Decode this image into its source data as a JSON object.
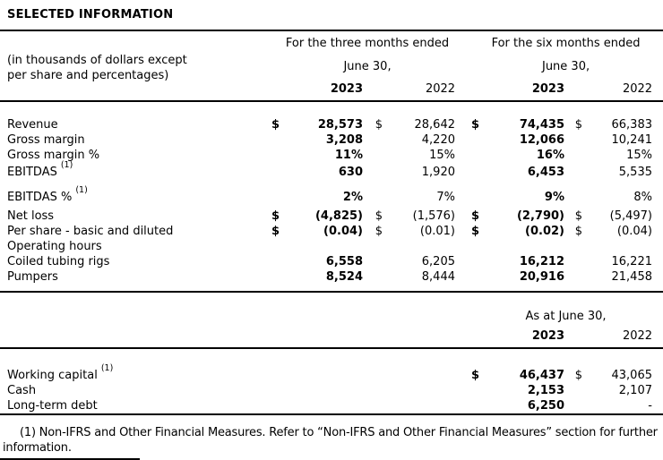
{
  "title": "SELECTED INFORMATION",
  "units_note": [
    "(in thousands of dollars except",
    "per share and percentages)"
  ],
  "periods_table": {
    "group1_header": "For the three months ended",
    "group2_header": "For the six months ended",
    "date_line": "June 30,",
    "years": [
      "2023",
      "2022",
      "2023",
      "2022"
    ],
    "rows": [
      {
        "label": "Revenue",
        "indent": false,
        "sup": "",
        "cells": [
          "$",
          "28,573",
          "$",
          "28,642",
          "$",
          "74,435",
          "$",
          "66,383"
        ]
      },
      {
        "label": "Gross margin",
        "indent": false,
        "sup": "",
        "cells": [
          "",
          "3,208",
          "",
          "4,220",
          "",
          "12,066",
          "",
          "10,241"
        ]
      },
      {
        "label": "Gross margin %",
        "indent": true,
        "sup": "",
        "cells": [
          "",
          "11%",
          "",
          "15%",
          "",
          "16%",
          "",
          "15%"
        ]
      },
      {
        "label": "EBITDAS",
        "indent": false,
        "sup": "(1)",
        "cells": [
          "",
          "630",
          "",
          "1,920",
          "",
          "6,453",
          "",
          "5,535"
        ]
      },
      {
        "label": "EBITDAS %",
        "indent": true,
        "sup": "(1)",
        "cells": [
          "",
          "2%",
          "",
          "7%",
          "",
          "9%",
          "",
          "8%"
        ]
      },
      {
        "label": "Net loss",
        "indent": false,
        "sup": "",
        "cells": [
          "$",
          "(4,825)",
          "$",
          "(1,576)",
          "$",
          "(2,790)",
          "$",
          "(5,497)"
        ]
      },
      {
        "label": "Per share - basic and diluted",
        "indent": true,
        "sup": "",
        "cells": [
          "$",
          "(0.04)",
          "$",
          "(0.01)",
          "$",
          "(0.02)",
          "$",
          "(0.04)"
        ]
      },
      {
        "label": "Operating hours",
        "indent": false,
        "sup": "",
        "cells": [
          "",
          "",
          "",
          "",
          "",
          "",
          "",
          ""
        ]
      },
      {
        "label": "Coiled tubing rigs",
        "indent": true,
        "sup": "",
        "cells": [
          "",
          "6,558",
          "",
          "6,205",
          "",
          "16,212",
          "",
          "16,221"
        ]
      },
      {
        "label": "Pumpers",
        "indent": true,
        "sup": "",
        "cells": [
          "",
          "8,524",
          "",
          "8,444",
          "",
          "20,916",
          "",
          "21,458"
        ]
      }
    ]
  },
  "balance_table": {
    "header": "As at June 30,",
    "years": [
      "2023",
      "2022"
    ],
    "rows": [
      {
        "label": "Working capital",
        "indent": false,
        "sup": "(1)",
        "cells": [
          "$",
          "46,437",
          "$",
          "43,065"
        ]
      },
      {
        "label": "Cash",
        "indent": false,
        "sup": "",
        "cells": [
          "",
          "2,153",
          "",
          "2,107"
        ]
      },
      {
        "label": "Long-term debt",
        "indent": false,
        "sup": "",
        "cells": [
          "",
          "6,250",
          "",
          "-"
        ]
      }
    ]
  },
  "footnote": "(1) Non-IFRS and Other Financial Measures. Refer to “Non-IFRS and Other Financial Measures” section for further information."
}
